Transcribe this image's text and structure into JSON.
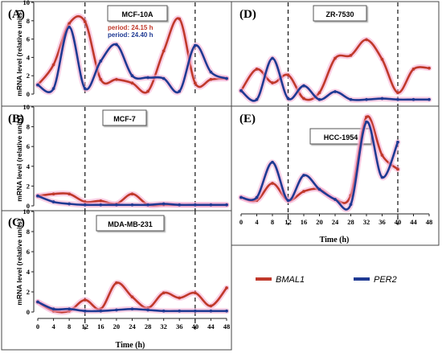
{
  "axis": {
    "ylabel": "mRNA level (relative units)",
    "xlabel": "Time (h)",
    "y_ticks": [
      "0",
      "2",
      "4",
      "6",
      "8",
      "10"
    ],
    "x_ticks": [
      "0",
      "4",
      "8",
      "12",
      "16",
      "20",
      "24",
      "28",
      "32",
      "36",
      "40",
      "44",
      "48"
    ]
  },
  "legend": [
    {
      "name": "BMAL1",
      "color": "#c0392b"
    },
    {
      "name": "PER2",
      "color": "#1f3a93"
    }
  ],
  "colors": {
    "bmal1": "#c0392b",
    "per2": "#1f3a93",
    "glow": "#f6a9cf"
  },
  "chart_data": [
    {
      "type": "line",
      "panel": "(A)",
      "title": "MCF-10A",
      "annotations": [
        "period: 24.15 h",
        "period: 24.40 h"
      ],
      "xlim": [
        0,
        48
      ],
      "ylim": [
        0,
        10
      ],
      "grid": false,
      "reference_lines_x": [
        12,
        40
      ],
      "series": [
        {
          "name": "BMAL1",
          "x": [
            0,
            4,
            8,
            12,
            16,
            20,
            24,
            28,
            32,
            36,
            40,
            44,
            48
          ],
          "values": [
            1.0,
            3.2,
            7.7,
            7.9,
            1.6,
            1.6,
            1.2,
            0.3,
            4.7,
            8.2,
            1.2,
            1.6,
            1.7
          ]
        },
        {
          "name": "PER2",
          "x": [
            0,
            4,
            8,
            12,
            16,
            20,
            24,
            28,
            32,
            36,
            40,
            44,
            48
          ],
          "values": [
            1.0,
            0.6,
            7.3,
            0.6,
            3.6,
            5.4,
            2.0,
            1.8,
            1.7,
            0.3,
            5.3,
            2.4,
            1.7
          ]
        }
      ]
    },
    {
      "type": "line",
      "panel": "(B)",
      "title": "MCF-7",
      "xlim": [
        0,
        48
      ],
      "ylim": [
        0,
        10
      ],
      "grid": false,
      "reference_lines_x": [
        12,
        40
      ],
      "series": [
        {
          "name": "BMAL1",
          "x": [
            0,
            4,
            8,
            12,
            16,
            20,
            24,
            28,
            32,
            36,
            40,
            44,
            48
          ],
          "values": [
            1.0,
            1.2,
            1.2,
            0.4,
            0.5,
            0.2,
            1.2,
            0.1,
            0.1,
            0.1,
            0.1,
            0.1,
            0.1
          ]
        },
        {
          "name": "PER2",
          "x": [
            0,
            4,
            8,
            12,
            16,
            20,
            24,
            28,
            32,
            36,
            40,
            44,
            48
          ],
          "values": [
            1.0,
            0.4,
            0.2,
            0.1,
            0.1,
            0.1,
            0.1,
            0.1,
            0.2,
            0.1,
            0.1,
            0.1,
            0.1
          ]
        }
      ]
    },
    {
      "type": "line",
      "panel": "(C)",
      "title": "MDA-MB-231",
      "xlim": [
        0,
        48
      ],
      "ylim": [
        0,
        10
      ],
      "grid": false,
      "reference_lines_x": [
        12,
        40
      ],
      "series": [
        {
          "name": "BMAL1",
          "x": [
            0,
            4,
            8,
            12,
            16,
            20,
            24,
            28,
            32,
            36,
            40,
            44,
            48
          ],
          "values": [
            1.0,
            0.1,
            0.1,
            1.2,
            0.3,
            2.9,
            1.5,
            0.4,
            1.9,
            1.4,
            1.9,
            0.6,
            2.4
          ]
        },
        {
          "name": "PER2",
          "x": [
            0,
            4,
            8,
            12,
            16,
            20,
            24,
            28,
            32,
            36,
            40,
            44,
            48
          ],
          "values": [
            1.0,
            0.3,
            0.3,
            0.1,
            0.1,
            0.2,
            0.3,
            0.2,
            0.1,
            0.1,
            0.1,
            0.1,
            0.1
          ]
        }
      ]
    },
    {
      "type": "line",
      "panel": "(D)",
      "title": "ZR-7530",
      "xlim": [
        0,
        48
      ],
      "ylim": [
        0,
        10
      ],
      "grid": false,
      "reference_lines_x": [
        12,
        40
      ],
      "series": [
        {
          "name": "BMAL1",
          "x": [
            0,
            4,
            8,
            12,
            16,
            20,
            24,
            28,
            32,
            36,
            40,
            44,
            48
          ],
          "values": [
            1.0,
            3.2,
            1.8,
            2.6,
            0.2,
            0.8,
            4.3,
            4.6,
            6.2,
            4.2,
            0.8,
            3.2,
            3.3
          ]
        },
        {
          "name": "PER2",
          "x": [
            0,
            4,
            8,
            12,
            16,
            20,
            24,
            28,
            32,
            36,
            40,
            44,
            48
          ],
          "values": [
            1.0,
            0.1,
            4.3,
            0.2,
            1.5,
            0.1,
            0.9,
            0.1,
            0.1,
            0.2,
            0.1,
            0.1,
            0.1
          ]
        }
      ]
    },
    {
      "type": "line",
      "panel": "(E)",
      "title": "HCC-1954",
      "xlim": [
        0,
        48
      ],
      "ylim": [
        0,
        10
      ],
      "grid": false,
      "reference_lines_x": [
        12,
        40
      ],
      "series": [
        {
          "name": "BMAL1",
          "x": [
            0,
            4,
            8,
            12,
            16,
            20,
            24,
            28,
            32,
            36,
            40
          ],
          "values": [
            1.0,
            0.7,
            2.4,
            0.7,
            1.6,
            1.8,
            0.8,
            1.2,
            9.0,
            5.2,
            3.8
          ]
        },
        {
          "name": "PER2",
          "x": [
            0,
            4,
            8,
            12,
            16,
            20,
            24,
            28,
            32,
            36,
            40
          ],
          "values": [
            1.0,
            1.0,
            4.5,
            0.7,
            3.2,
            1.8,
            0.8,
            0.3,
            8.5,
            3.0,
            6.5
          ]
        }
      ]
    }
  ]
}
